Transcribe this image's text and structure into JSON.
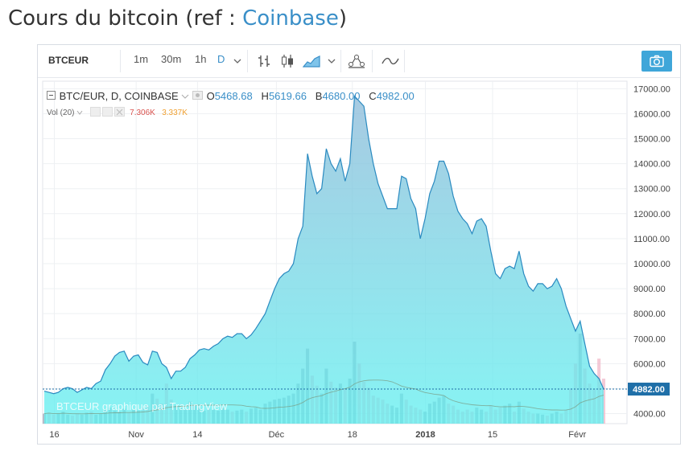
{
  "page": {
    "title_prefix": "Cours du bitcoin (ref : ",
    "title_link": "Coinbase",
    "title_suffix": ")"
  },
  "toolbar": {
    "symbol": "BTCEUR",
    "intervals": [
      "1m",
      "30m",
      "1h",
      "D"
    ],
    "active_interval": "D"
  },
  "legend": {
    "series_label": "BTC/EUR, D, COINBASE",
    "open_label": "O",
    "open_value": "5468.68",
    "high_label": "H",
    "high_value": "5619.66",
    "low_label": "B",
    "low_value": "4680.00",
    "close_label": "C",
    "close_value": "4982.00",
    "volume_label": "Vol (20)",
    "volume_value_1": "7.306K",
    "volume_value_2": "3.337K"
  },
  "watermark": "BTCEUR graphique par TradingView",
  "colors": {
    "area_top": "#8ab8d8",
    "area_bottom": "#5ef0f0",
    "line": "#2a8ac0",
    "last_price_bg": "#1f6fa8",
    "volume_bar": "#a0a8b8",
    "volume_bar_down": "#f0b8c8",
    "accent": "#3a8fc8"
  },
  "chart_data": {
    "type": "area",
    "x_ticks": [
      "16",
      "Nov",
      "14",
      "Déc",
      "18",
      "2018",
      "15",
      "Févr"
    ],
    "y_ticks": [
      "4000.00",
      "5000.00",
      "6000.00",
      "7000.00",
      "8000.00",
      "9000.00",
      "10000.00",
      "11000.00",
      "12000.00",
      "13000.00",
      "14000.00",
      "15000.00",
      "16000.00",
      "17000.00"
    ],
    "ylim": [
      3600,
      17300
    ],
    "last_price": "4982.00",
    "grid": true,
    "series": [
      {
        "values": [
          4900,
          4850,
          4800,
          4850,
          5000,
          5050,
          5000,
          4850,
          4950,
          5050,
          5000,
          5200,
          5300,
          5750,
          6000,
          6300,
          6450,
          6500,
          6100,
          6300,
          6350,
          6050,
          5950,
          6500,
          6450,
          6000,
          5850,
          5400,
          5700,
          5700,
          5850,
          6200,
          6350,
          6550,
          6600,
          6550,
          6700,
          6800,
          7000,
          7100,
          7050,
          7200,
          7200,
          7000,
          7150,
          7400,
          7700,
          8000,
          8500,
          9000,
          9400,
          9600,
          9700,
          10000,
          11000,
          11500,
          14400,
          13500,
          12800,
          13000,
          14600,
          14000,
          13700,
          14200,
          13300,
          14000,
          16700,
          16500,
          16300,
          15000,
          14000,
          13200,
          12700,
          12200,
          12200,
          12200,
          13500,
          13400,
          12600,
          12200,
          11000,
          11800,
          12800,
          13300,
          14100,
          14100,
          13600,
          12700,
          12100,
          11800,
          11600,
          11200,
          11700,
          11800,
          11500,
          10500,
          9600,
          9400,
          9800,
          9900,
          9800,
          10500,
          9600,
          9100,
          8900,
          9200,
          9200,
          9000,
          9100,
          9400,
          9000,
          8300,
          7800,
          7300,
          7700,
          6800,
          5900,
          5600,
          5400,
          4982
        ]
      }
    ],
    "volume": [
      10,
      11,
      9,
      10,
      12,
      9,
      8,
      10,
      9,
      11,
      12,
      9,
      10,
      14,
      16,
      13,
      12,
      15,
      11,
      14,
      13,
      16,
      18,
      30,
      25,
      20,
      40,
      24,
      18,
      16,
      14,
      22,
      18,
      16,
      13,
      15,
      14,
      13,
      16,
      14,
      12,
      13,
      14,
      12,
      15,
      16,
      14,
      20,
      22,
      24,
      25,
      26,
      28,
      30,
      40,
      55,
      75,
      48,
      38,
      30,
      55,
      42,
      36,
      40,
      35,
      45,
      82,
      60,
      42,
      36,
      28,
      26,
      24,
      20,
      18,
      16,
      30,
      24,
      18,
      16,
      14,
      12,
      20,
      22,
      26,
      28,
      20,
      18,
      14,
      12,
      14,
      12,
      16,
      14,
      12,
      18,
      14,
      16,
      18,
      20,
      12,
      22,
      15,
      12,
      10,
      10,
      9,
      8,
      10,
      12,
      10,
      14,
      35,
      60,
      90,
      55,
      40,
      35,
      65,
      45
    ]
  }
}
